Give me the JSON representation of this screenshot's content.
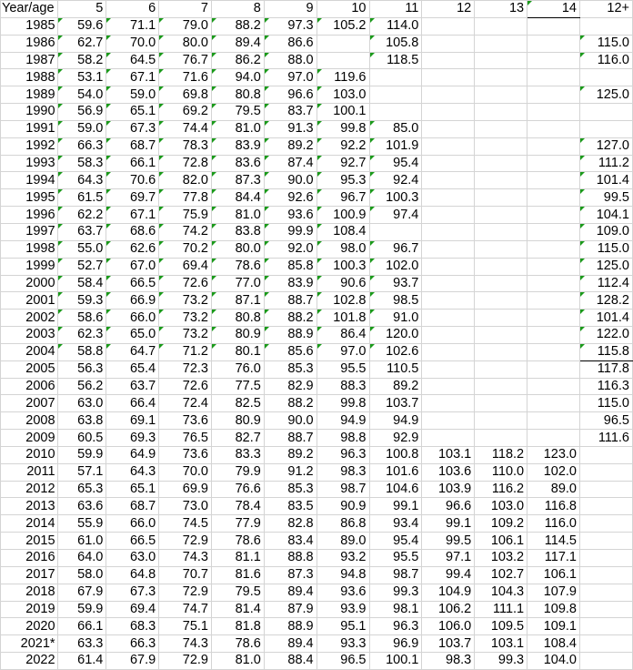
{
  "sheet": {
    "headers": [
      "Year/age",
      "5",
      "6",
      "7",
      "8",
      "9",
      "10",
      "11",
      "12",
      "13",
      "14",
      "12+"
    ],
    "rows": [
      [
        "1985",
        "59.6",
        "71.1",
        "79.0",
        "88.2",
        "97.3",
        "105.2",
        "114.0",
        "",
        "",
        "",
        ""
      ],
      [
        "1986",
        "62.7",
        "70.0",
        "80.0",
        "89.4",
        "86.6",
        "",
        "105.8",
        "",
        "",
        "",
        "115.0"
      ],
      [
        "1987",
        "58.2",
        "64.5",
        "76.7",
        "86.2",
        "88.0",
        "",
        "118.5",
        "",
        "",
        "",
        "116.0"
      ],
      [
        "1988",
        "53.1",
        "67.1",
        "71.6",
        "94.0",
        "97.0",
        "119.6",
        "",
        "",
        "",
        "",
        ""
      ],
      [
        "1989",
        "54.0",
        "59.0",
        "69.8",
        "80.8",
        "96.6",
        "103.0",
        "",
        "",
        "",
        "",
        "125.0"
      ],
      [
        "1990",
        "56.9",
        "65.1",
        "69.2",
        "79.5",
        "83.7",
        "100.1",
        "",
        "",
        "",
        "",
        ""
      ],
      [
        "1991",
        "59.0",
        "67.3",
        "74.4",
        "81.0",
        "91.3",
        "99.8",
        "85.0",
        "",
        "",
        "",
        ""
      ],
      [
        "1992",
        "66.3",
        "68.7",
        "78.3",
        "83.9",
        "89.2",
        "92.2",
        "101.9",
        "",
        "",
        "",
        "127.0"
      ],
      [
        "1993",
        "58.3",
        "66.1",
        "72.8",
        "83.6",
        "87.4",
        "92.7",
        "95.4",
        "",
        "",
        "",
        "111.2"
      ],
      [
        "1994",
        "64.3",
        "70.6",
        "82.0",
        "87.3",
        "90.0",
        "95.3",
        "92.4",
        "",
        "",
        "",
        "101.4"
      ],
      [
        "1995",
        "61.5",
        "69.7",
        "77.8",
        "84.4",
        "92.6",
        "96.7",
        "100.3",
        "",
        "",
        "",
        "99.5"
      ],
      [
        "1996",
        "62.2",
        "67.1",
        "75.9",
        "81.0",
        "93.6",
        "100.9",
        "97.4",
        "",
        "",
        "",
        "104.1"
      ],
      [
        "1997",
        "63.7",
        "68.6",
        "74.2",
        "83.8",
        "99.9",
        "108.4",
        "",
        "",
        "",
        "",
        "109.0"
      ],
      [
        "1998",
        "55.0",
        "62.6",
        "70.2",
        "80.0",
        "92.0",
        "98.0",
        "96.7",
        "",
        "",
        "",
        "115.0"
      ],
      [
        "1999",
        "52.7",
        "67.0",
        "69.4",
        "78.6",
        "85.8",
        "100.3",
        "102.0",
        "",
        "",
        "",
        "125.0"
      ],
      [
        "2000",
        "58.4",
        "66.5",
        "72.6",
        "77.0",
        "83.9",
        "90.6",
        "93.7",
        "",
        "",
        "",
        "112.4"
      ],
      [
        "2001",
        "59.3",
        "66.9",
        "73.2",
        "87.1",
        "88.7",
        "102.8",
        "98.5",
        "",
        "",
        "",
        "128.2"
      ],
      [
        "2002",
        "58.6",
        "66.0",
        "73.2",
        "80.8",
        "88.2",
        "101.8",
        "91.0",
        "",
        "",
        "",
        "101.4"
      ],
      [
        "2003",
        "62.3",
        "65.0",
        "73.2",
        "80.9",
        "88.9",
        "86.4",
        "120.0",
        "",
        "",
        "",
        "122.0"
      ],
      [
        "2004",
        "58.8",
        "64.7",
        "71.2",
        "80.1",
        "85.6",
        "97.0",
        "102.6",
        "",
        "",
        "",
        "115.8"
      ],
      [
        "2005",
        "56.3",
        "65.4",
        "72.3",
        "76.0",
        "85.3",
        "95.5",
        "110.5",
        "",
        "",
        "",
        "117.8"
      ],
      [
        "2006",
        "56.2",
        "63.7",
        "72.6",
        "77.5",
        "82.9",
        "88.3",
        "89.2",
        "",
        "",
        "",
        "116.3"
      ],
      [
        "2007",
        "63.0",
        "66.4",
        "72.4",
        "82.5",
        "88.2",
        "99.8",
        "103.7",
        "",
        "",
        "",
        "115.0"
      ],
      [
        "2008",
        "63.8",
        "69.1",
        "73.6",
        "80.9",
        "90.0",
        "94.9",
        "94.9",
        "",
        "",
        "",
        "96.5"
      ],
      [
        "2009",
        "60.5",
        "69.3",
        "76.5",
        "82.7",
        "88.7",
        "98.8",
        "92.9",
        "",
        "",
        "",
        "111.6"
      ],
      [
        "2010",
        "59.9",
        "64.9",
        "73.6",
        "83.3",
        "89.2",
        "96.3",
        "100.8",
        "103.1",
        "118.2",
        "123.0",
        ""
      ],
      [
        "2011",
        "57.1",
        "64.3",
        "70.0",
        "79.9",
        "91.2",
        "98.3",
        "101.6",
        "103.6",
        "110.0",
        "102.0",
        ""
      ],
      [
        "2012",
        "65.3",
        "65.1",
        "69.9",
        "76.6",
        "85.3",
        "98.7",
        "104.6",
        "103.9",
        "116.2",
        "89.0",
        ""
      ],
      [
        "2013",
        "63.6",
        "68.7",
        "73.0",
        "78.4",
        "83.5",
        "90.9",
        "99.1",
        "96.6",
        "103.0",
        "116.8",
        ""
      ],
      [
        "2014",
        "55.9",
        "66.0",
        "74.5",
        "77.9",
        "82.8",
        "86.8",
        "93.4",
        "99.1",
        "109.2",
        "116.0",
        ""
      ],
      [
        "2015",
        "61.0",
        "66.5",
        "72.9",
        "78.6",
        "83.4",
        "89.0",
        "95.4",
        "99.5",
        "106.1",
        "114.5",
        ""
      ],
      [
        "2016",
        "64.0",
        "63.0",
        "74.3",
        "81.1",
        "88.8",
        "93.2",
        "95.5",
        "97.1",
        "103.2",
        "117.1",
        ""
      ],
      [
        "2017",
        "58.0",
        "64.8",
        "70.7",
        "81.6",
        "87.3",
        "94.8",
        "98.7",
        "99.4",
        "102.7",
        "106.1",
        ""
      ],
      [
        "2018",
        "67.9",
        "67.3",
        "72.9",
        "79.5",
        "89.4",
        "93.6",
        "99.3",
        "104.9",
        "104.3",
        "107.9",
        ""
      ],
      [
        "2019",
        "59.9",
        "69.4",
        "74.7",
        "81.4",
        "87.9",
        "93.9",
        "98.1",
        "106.2",
        "111.1",
        "109.8",
        ""
      ],
      [
        "2020",
        "66.1",
        "68.3",
        "75.1",
        "81.8",
        "88.9",
        "95.1",
        "96.3",
        "106.0",
        "109.5",
        "109.1",
        ""
      ],
      [
        "2021*",
        "63.3",
        "66.3",
        "74.3",
        "78.6",
        "89.4",
        "93.3",
        "96.9",
        "103.7",
        "103.1",
        "108.4",
        ""
      ],
      [
        "2022",
        "61.4",
        "67.9",
        "72.9",
        "81.0",
        "88.4",
        "96.5",
        "100.1",
        "98.3",
        "99.3",
        "104.0",
        ""
      ]
    ],
    "text_number_rows_through": "2004",
    "marker_color": "#1a9a1a"
  }
}
